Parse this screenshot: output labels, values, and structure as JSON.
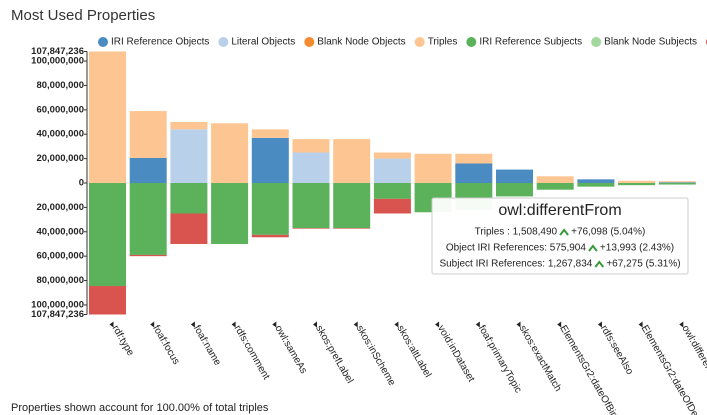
{
  "chart_data": {
    "type": "bar",
    "title": "Most Used Properties",
    "categories": [
      "rdf:type",
      "foaf:focus",
      "foaf:name",
      "rdfs:comment",
      "owl:sameAs",
      "skos:prefLabel",
      "skos:inScheme",
      "skos:altLabel",
      "void:inDataset",
      "foaf:primaryTopic",
      "skos:exactMatch",
      "ElementsGr2:dateOfBirth",
      "rdfs:seeAlso",
      "ElementsGr2:dateOfDeath",
      "owl:differentFrom"
    ],
    "series": [
      {
        "name": "IRI Reference Objects",
        "color": "#4a8cc2",
        "values": [
          0,
          20500000,
          0,
          0,
          37000000,
          0,
          0,
          0,
          0,
          16000000,
          11000000,
          0,
          3000000,
          0,
          575904
        ]
      },
      {
        "name": "Literal Objects",
        "color": "#b9d0ea",
        "values": [
          0,
          0,
          44000000,
          0,
          0,
          25000000,
          0,
          20000000,
          0,
          0,
          0,
          0,
          0,
          0,
          0
        ]
      },
      {
        "name": "Blank Node Objects",
        "color": "#f58a2e",
        "values": [
          0,
          0,
          0,
          0,
          0,
          0,
          0,
          0,
          0,
          0,
          0,
          0,
          0,
          0,
          0
        ]
      },
      {
        "name": "Triples",
        "color": "#fdc591",
        "values": [
          107847236,
          38500000,
          6000000,
          49000000,
          7000000,
          11000000,
          36000000,
          5000000,
          24000000,
          8000000,
          0,
          5500000,
          0,
          1800000,
          932586
        ]
      },
      {
        "name": "IRI Reference Subjects",
        "color": "#5bb25a",
        "values": [
          -84500000,
          -59000000,
          -25000000,
          -50000000,
          -42500000,
          -37000000,
          -37000000,
          -13000000,
          -24000000,
          -22000000,
          -11000000,
          -5500000,
          -3000000,
          -1800000,
          -1267834
        ]
      },
      {
        "name": "Blank Node Subjects",
        "color": "#a3d99c",
        "values": [
          0,
          0,
          0,
          0,
          0,
          0,
          0,
          0,
          0,
          0,
          0,
          0,
          0,
          0,
          0
        ]
      },
      {
        "name": "Triples",
        "color": "#d9534f",
        "values": [
          -23347236,
          -1000000,
          -25000000,
          0,
          -2000000,
          -500000,
          -500000,
          -12000000,
          0,
          0,
          0,
          0,
          0,
          0,
          0
        ]
      }
    ],
    "ylim": [
      -107847236,
      107847236
    ],
    "yticks": [
      {
        "value": 107847236,
        "label": "107,847,236"
      },
      {
        "value": 100000000,
        "label": "100,000,000"
      },
      {
        "value": 80000000,
        "label": "80,000,000"
      },
      {
        "value": 60000000,
        "label": "60,000,000"
      },
      {
        "value": 40000000,
        "label": "40,000,000"
      },
      {
        "value": 20000000,
        "label": "20,000,000"
      },
      0,
      {
        "value": -20000000,
        "label": "20,000,000"
      },
      {
        "value": -40000000,
        "label": "40,000,000"
      },
      {
        "value": -60000000,
        "label": "60,000,000"
      },
      {
        "value": -80000000,
        "label": "80,000,000"
      },
      {
        "value": -100000000,
        "label": "100,000,000"
      },
      {
        "value": -107847236,
        "label": "107,847,236"
      }
    ],
    "tooltip": {
      "title": "owl:differentFrom",
      "rows": [
        {
          "label": "Triples : 1,508,490",
          "change": "+76,098 (5.04%)"
        },
        {
          "label": "Object IRI References: 575,904",
          "change": "+13,993 (2.43%)"
        },
        {
          "label": "Subject IRI References: 1,267,834",
          "change": "+67,275 (5.31%)"
        }
      ]
    },
    "footnote": "Properties shown account for 100.00% of total triples"
  }
}
